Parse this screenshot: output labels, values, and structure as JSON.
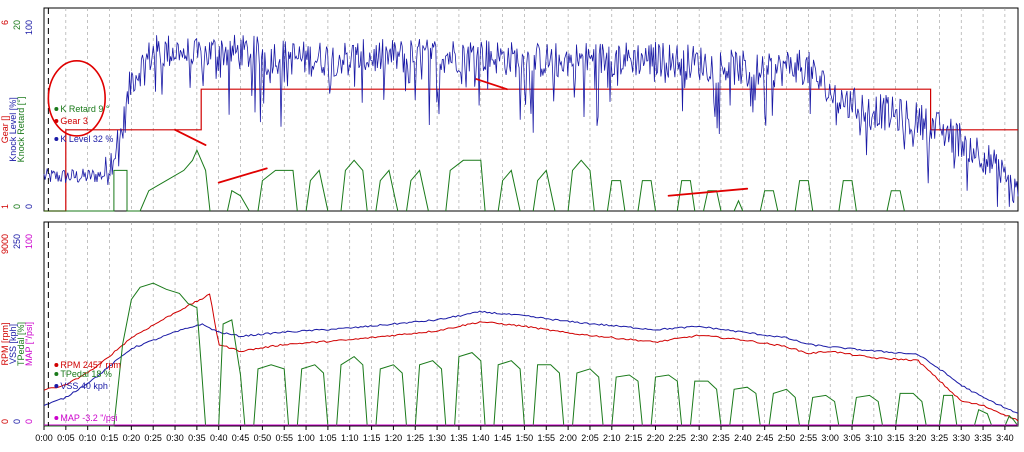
{
  "chart_data": [
    {
      "type": "line",
      "panel": "top",
      "left_axis_labels": [
        {
          "text": "Gear []",
          "color": "#d00000"
        },
        {
          "text": "Knock Level [%]",
          "color": "#1a1aa6"
        },
        {
          "text": "Knock Retard [°]",
          "color": "#1a7a1a"
        }
      ],
      "axis_scales": [
        {
          "min": "1",
          "max": "6",
          "color": "#d00000"
        },
        {
          "min": "0",
          "max": "20",
          "color": "#1a7a1a"
        },
        {
          "min": "0",
          "max": "100",
          "color": "#1a1aa6"
        }
      ],
      "readouts": [
        {
          "text": "K Retard 9 °",
          "color": "#1a7a1a"
        },
        {
          "text": "Gear 3",
          "color": "#d00000"
        },
        {
          "text": "K Level 32 %",
          "color": "#1a1aa6"
        }
      ],
      "series": [
        {
          "label": "Gear",
          "color": "#d00000",
          "ylim": [
            1,
            6
          ],
          "x": [
            0,
            5,
            5,
            36,
            36,
            203,
            203,
            223
          ],
          "y": [
            1,
            1,
            3,
            3,
            4,
            4,
            3,
            3
          ]
        },
        {
          "label": "Knock Level",
          "color": "#1a1aa6",
          "ylim": [
            0,
            100
          ],
          "x": [
            0,
            10,
            14,
            18,
            20,
            25,
            30,
            35,
            40,
            50,
            60,
            80,
            100,
            110,
            130,
            140,
            150,
            160,
            165,
            172,
            175,
            180,
            185,
            190,
            195,
            200,
            205,
            210,
            215,
            223
          ],
          "y": [
            17,
            17,
            18,
            40,
            65,
            78,
            79,
            76,
            79,
            77,
            75,
            76,
            77,
            74,
            75,
            75,
            73,
            70,
            68,
            72,
            70,
            58,
            52,
            50,
            47,
            45,
            40,
            35,
            28,
            8
          ]
        },
        {
          "label": "Knock Retard",
          "color": "#1a7a1a",
          "ylim": [
            0,
            20
          ],
          "segments": [
            [
              0,
              0,
              16,
              0,
              16,
              4,
              19,
              4,
              19,
              0,
              22,
              0,
              24,
              2,
              28,
              3,
              32,
              4,
              34,
              5,
              35,
              6,
              37,
              4,
              38,
              0
            ],
            [
              42,
              0,
              43,
              2,
              45,
              1.5,
              47,
              0
            ],
            [
              49,
              0,
              50,
              3,
              53,
              4,
              57,
              4,
              58,
              0
            ],
            [
              60,
              0,
              61,
              3,
              63,
              4,
              65,
              0
            ],
            [
              68,
              0,
              69,
              4,
              71,
              5,
              73,
              4,
              74,
              0
            ],
            [
              76,
              0,
              77,
              3,
              79,
              4,
              81,
              0
            ],
            [
              83,
              0,
              84,
              3,
              86,
              4,
              88,
              0
            ],
            [
              92,
              0,
              93,
              4,
              96,
              5,
              100,
              5,
              101,
              0
            ],
            [
              104,
              0,
              105,
              3,
              107,
              4,
              109,
              0
            ],
            [
              112,
              0,
              113,
              3,
              115,
              4,
              117,
              0
            ],
            [
              120,
              0,
              121,
              4,
              123,
              5,
              125,
              4,
              126,
              0
            ],
            [
              129,
              0,
              130,
              3,
              132,
              3,
              133,
              0
            ],
            [
              136,
              0,
              137,
              3,
              139,
              3,
              140,
              0
            ],
            [
              145,
              0,
              146,
              3,
              148,
              3,
              149,
              0
            ],
            [
              151,
              0,
              152,
              2,
              154,
              2,
              155,
              0
            ],
            [
              158,
              0,
              159,
              1,
              160,
              0
            ],
            [
              164,
              0,
              165,
              2,
              167,
              2,
              168,
              0
            ],
            [
              172,
              0,
              173,
              3,
              175,
              3,
              176,
              0
            ],
            [
              182,
              0,
              183,
              3,
              185,
              3,
              186,
              0
            ],
            [
              193,
              0,
              194,
              2,
              196,
              2,
              197,
              0
            ]
          ]
        }
      ],
      "annotations": [
        {
          "type": "ellipse",
          "x": [
            1,
            14
          ],
          "y": [
            37,
            74
          ]
        },
        {
          "type": "stroke",
          "x": [
            30,
            37
          ],
          "y": [
            8,
            6.5
          ]
        },
        {
          "type": "stroke",
          "x": [
            40,
            51
          ],
          "y": [
            2.8,
            4.2
          ]
        },
        {
          "type": "stroke",
          "x": [
            99,
            106
          ],
          "y": [
            13,
            12
          ]
        },
        {
          "type": "stroke",
          "x": [
            143,
            161
          ],
          "y": [
            1.5,
            2.2
          ]
        }
      ],
      "marker_x": 1
    },
    {
      "type": "line",
      "panel": "bottom",
      "left_axis_labels": [
        {
          "text": "RPM [rpm]",
          "color": "#d00000"
        },
        {
          "text": "VSS [kph]",
          "color": "#1a1aa6"
        },
        {
          "text": "TPedal [%]",
          "color": "#1a7a1a"
        },
        {
          "text": "MAP [\"/psi]",
          "color": "#cc00cc"
        }
      ],
      "axis_scales": [
        {
          "min": "0",
          "max": "9000",
          "color": "#d00000"
        },
        {
          "min": "0",
          "max": "250",
          "color": "#1a1aa6"
        },
        {
          "min": "0",
          "max": "100",
          "color": "#cc00cc"
        }
      ],
      "readouts": [
        {
          "text": "RPM 2457 rpm",
          "color": "#d00000"
        },
        {
          "text": "TPedal 18 %",
          "color": "#1a7a1a"
        },
        {
          "text": "VSS 40 kph",
          "color": "#1a1aa6"
        },
        {
          "text": "MAP -3.2 \"/psi",
          "color": "#cc00cc"
        }
      ],
      "series": [
        {
          "label": "RPM",
          "color": "#d00000",
          "ylim": [
            0,
            9000
          ],
          "x": [
            0,
            5,
            12,
            20,
            30,
            38,
            40,
            45,
            55,
            70,
            90,
            100,
            110,
            120,
            140,
            150,
            160,
            170,
            175,
            180,
            190,
            200,
            205,
            210,
            215,
            223
          ],
          "y": [
            1600,
            1800,
            2600,
            3900,
            5000,
            5800,
            3600,
            3300,
            3600,
            3800,
            4200,
            4600,
            4400,
            4100,
            3700,
            4000,
            3800,
            3500,
            3200,
            3300,
            3000,
            2900,
            2000,
            1100,
            900,
            250
          ]
        },
        {
          "label": "VSS",
          "color": "#1a1aa6",
          "ylim": [
            0,
            250
          ],
          "x": [
            0,
            5,
            12,
            20,
            30,
            36,
            40,
            45,
            55,
            70,
            90,
            100,
            110,
            120,
            140,
            150,
            160,
            170,
            175,
            180,
            190,
            200,
            205,
            210,
            215,
            223
          ],
          "y": [
            25,
            35,
            60,
            95,
            115,
            125,
            115,
            110,
            115,
            120,
            130,
            140,
            135,
            128,
            118,
            122,
            115,
            108,
            100,
            97,
            92,
            88,
            70,
            50,
            35,
            15
          ]
        },
        {
          "label": "TPedal",
          "color": "#1a7a1a",
          "ylim": [
            0,
            100
          ],
          "segments": [
            [
              0,
              0,
              16,
              0,
              18,
              40,
              20,
              62,
              22,
              68,
              25,
              70,
              28,
              67,
              31,
              65,
              33,
              60,
              35,
              58,
              36,
              30,
              37,
              0
            ],
            [
              40,
              0,
              41,
              50,
              43,
              52,
              45,
              25,
              46,
              0
            ],
            [
              48,
              0,
              49,
              28,
              52,
              30,
              55,
              28,
              56,
              0
            ],
            [
              58,
              0,
              59,
              28,
              62,
              30,
              64,
              26,
              65,
              0
            ],
            [
              67,
              0,
              68,
              30,
              71,
              34,
              73,
              30,
              74,
              0
            ],
            [
              76,
              0,
              77,
              28,
              80,
              30,
              82,
              26,
              83,
              0
            ],
            [
              85,
              0,
              86,
              30,
              89,
              32,
              91,
              28,
              92,
              0
            ],
            [
              94,
              0,
              95,
              34,
              98,
              36,
              100,
              32,
              101,
              0
            ],
            [
              103,
              0,
              104,
              30,
              107,
              32,
              109,
              28,
              110,
              0
            ],
            [
              112,
              0,
              113,
              30,
              116,
              30,
              118,
              26,
              119,
              0
            ],
            [
              121,
              0,
              122,
              26,
              125,
              28,
              127,
              24,
              128,
              0
            ],
            [
              130,
              0,
              131,
              24,
              134,
              25,
              136,
              22,
              137,
              0
            ],
            [
              139,
              0,
              140,
              24,
              143,
              25,
              145,
              22,
              146,
              0
            ],
            [
              148,
              0,
              149,
              22,
              152,
              22,
              154,
              18,
              155,
              0
            ],
            [
              157,
              0,
              158,
              18,
              161,
              19,
              163,
              16,
              164,
              0
            ],
            [
              166,
              0,
              167,
              16,
              170,
              18,
              172,
              14,
              173,
              0
            ],
            [
              175,
              0,
              176,
              14,
              179,
              15,
              181,
              12,
              182,
              0
            ],
            [
              185,
              0,
              186,
              14,
              189,
              15,
              191,
              12,
              192,
              0
            ],
            [
              195,
              0,
              196,
              16,
              199,
              16,
              201,
              12,
              202,
              0
            ],
            [
              205,
              0,
              206,
              15,
              208,
              15,
              209,
              0
            ],
            [
              213,
              0,
              214,
              8,
              216,
              6,
              217,
              0
            ],
            [
              220,
              0,
              221,
              5,
              222,
              3,
              223,
              0
            ]
          ]
        },
        {
          "label": "MAP",
          "color": "#cc00cc",
          "ylim": [
            0,
            100
          ],
          "x": [
            0,
            223
          ],
          "y": [
            0.5,
            0.5
          ]
        }
      ],
      "marker_x": 1
    }
  ],
  "x_axis": {
    "xlim": [
      0,
      223
    ],
    "tick_step_seconds": 5,
    "tick_labels": [
      "0:00",
      "0:05",
      "0:10",
      "0:15",
      "0:20",
      "0:25",
      "0:30",
      "0:35",
      "0:40",
      "0:45",
      "0:50",
      "0:55",
      "1:00",
      "1:05",
      "1:10",
      "1:15",
      "1:20",
      "1:25",
      "1:30",
      "1:35",
      "1:40",
      "1:45",
      "1:50",
      "1:55",
      "2:00",
      "2:05",
      "2:10",
      "2:15",
      "2:20",
      "2:25",
      "2:30",
      "2:35",
      "2:40",
      "2:45",
      "2:50",
      "2:55",
      "3:00",
      "3:05",
      "3:10",
      "3:15",
      "3:20",
      "3:25",
      "3:30",
      "3:35",
      "3:40"
    ],
    "grid": true
  },
  "colors": {
    "frame": "#000000",
    "grid": "#9a9a9a",
    "panel_bg": "#ffffff",
    "annotation": "#e00000"
  }
}
